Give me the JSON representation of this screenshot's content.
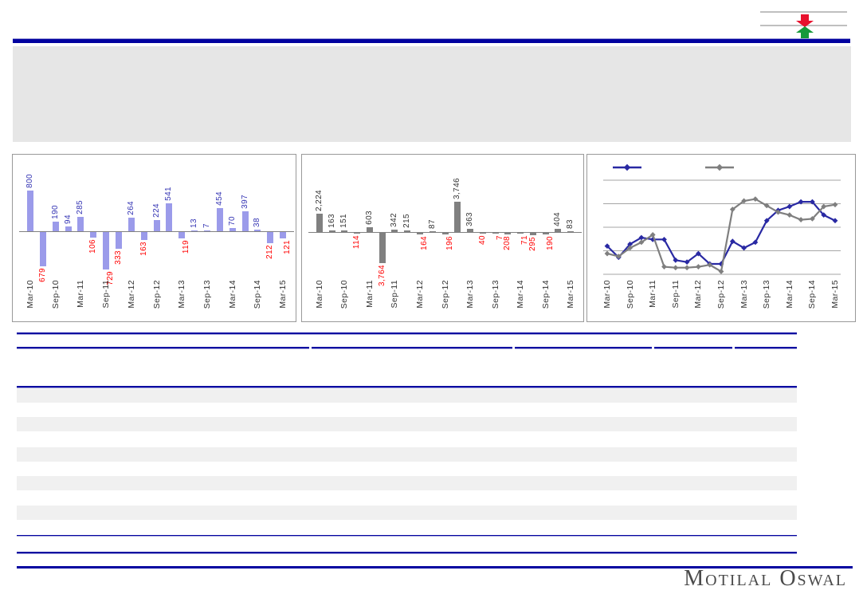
{
  "page": {
    "background": "#FFFFFF"
  },
  "header": {
    "logo_arrow_icon": {
      "down_arrow_color": "#E8112D",
      "up_arrow_color": "#169A3A",
      "line_color": "#AAAAAA"
    },
    "rule_color": "#0202A0",
    "title_block_text": ""
  },
  "table": {
    "stripe_color": "#F0F0F0",
    "rule_color": "#0202A0",
    "visible_text": ""
  },
  "footer": {
    "brand": "Motilal Oswal",
    "brand_color": "#4A4A4A"
  },
  "chart_data": [
    {
      "type": "bar",
      "title": "",
      "categories": [
        "Mar-10",
        "Jun-10",
        "Sep-10",
        "Dec-10",
        "Mar-11",
        "Jun-11",
        "Sep-11",
        "Dec-11",
        "Mar-12",
        "Jun-12",
        "Sep-12",
        "Dec-12",
        "Mar-13",
        "Jun-13",
        "Sep-13",
        "Dec-13",
        "Mar-14",
        "Jun-14",
        "Sep-14",
        "Dec-14",
        "Mar-15"
      ],
      "values": [
        800,
        -679,
        190,
        94,
        285,
        -106,
        -729,
        -333,
        264,
        -163,
        224,
        541,
        -119,
        13,
        7,
        454,
        70,
        397,
        38,
        -212,
        -121
      ],
      "x_tick_labels": [
        "Mar-10",
        "Sep-10",
        "Mar-11",
        "Sep-11",
        "Mar-12",
        "Sep-12",
        "Mar-13",
        "Sep-13",
        "Mar-14",
        "Sep-14",
        "Mar-15"
      ],
      "bar_color": "#9B9BEA",
      "positive_label_color": "#3333B3",
      "negative_label_color": "#FF0000",
      "ylim": [
        -820,
        880
      ],
      "grid": false,
      "legend": "none",
      "note": "negative values shown as red labels without minus sign"
    },
    {
      "type": "bar",
      "title": "",
      "categories": [
        "Mar-10",
        "Jun-10",
        "Sep-10",
        "Dec-10",
        "Mar-11",
        "Jun-11",
        "Sep-11",
        "Dec-11",
        "Mar-12",
        "Jun-12",
        "Sep-12",
        "Dec-12",
        "Mar-13",
        "Jun-13",
        "Sep-13",
        "Dec-13",
        "Mar-14",
        "Jun-14",
        "Sep-14",
        "Dec-14",
        "Mar-15"
      ],
      "values": [
        2224,
        163,
        151,
        -114,
        603,
        -3764,
        342,
        215,
        -164,
        87,
        -196,
        3746,
        363,
        -40,
        -7,
        -208,
        -71,
        -295,
        -190,
        404,
        83
      ],
      "x_tick_labels": [
        "Mar-10",
        "Sep-10",
        "Mar-11",
        "Sep-11",
        "Mar-12",
        "Sep-12",
        "Mar-13",
        "Sep-13",
        "Mar-14",
        "Sep-14",
        "Mar-15"
      ],
      "bar_color": "#808080",
      "positive_label_color": "#333333",
      "negative_label_color": "#FF0000",
      "ylim": [
        -4200,
        4200
      ],
      "grid": false,
      "legend": "none",
      "note": "negative values shown as red labels without minus sign"
    },
    {
      "type": "line",
      "title": "",
      "categories": [
        "Mar-10",
        "Jun-10",
        "Sep-10",
        "Dec-10",
        "Mar-11",
        "Jun-11",
        "Sep-11",
        "Dec-11",
        "Mar-12",
        "Jun-12",
        "Sep-12",
        "Dec-12",
        "Mar-13",
        "Jun-13",
        "Sep-13",
        "Dec-13",
        "Mar-14",
        "Jun-14",
        "Sep-14",
        "Dec-14",
        "Mar-15"
      ],
      "x_tick_labels": [
        "Mar-10",
        "Sep-10",
        "Mar-11",
        "Sep-11",
        "Mar-12",
        "Sep-12",
        "Mar-13",
        "Sep-13",
        "Mar-14",
        "Sep-14",
        "Mar-15"
      ],
      "series": [
        {
          "name": "",
          "color": "#2929A3",
          "marker": "diamond",
          "values": [
            30,
            18,
            32,
            39,
            37,
            37,
            15,
            13,
            22,
            11,
            11,
            35,
            28,
            34,
            57,
            68,
            72,
            77,
            77,
            63,
            57
          ]
        },
        {
          "name": "",
          "color": "#7F7F7F",
          "marker": "diamond",
          "values": [
            22,
            19,
            28,
            34,
            42,
            8,
            7,
            7,
            8,
            10,
            3,
            69,
            78,
            80,
            73,
            66,
            63,
            58,
            59,
            72,
            74
          ]
        }
      ],
      "grid": true,
      "legend_position": "top",
      "note": "y-axis unlabeled in source; values estimated on 0-100 relative scale from gridlines"
    }
  ]
}
